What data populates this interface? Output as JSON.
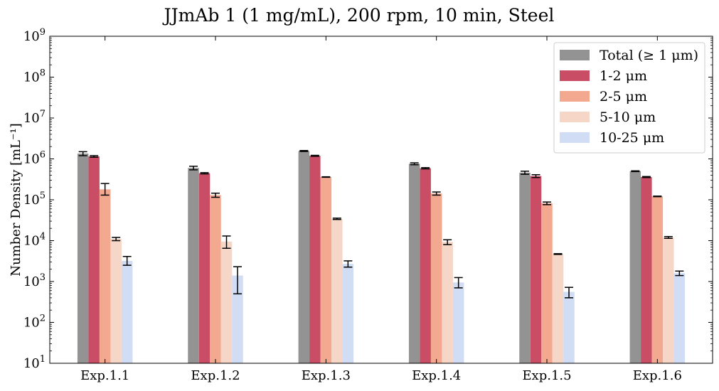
{
  "chart_data": {
    "type": "bar",
    "title": "JJmAb 1 (1 mg/mL), 200 rpm, 10 min, Steel",
    "xlabel": "",
    "ylabel": "Number Density [mL⁻¹]",
    "yscale": "log",
    "ylim": [
      10,
      1000000000
    ],
    "yticks": [
      {
        "value": 10,
        "base": "10",
        "exp": "1"
      },
      {
        "value": 100,
        "base": "10",
        "exp": "2"
      },
      {
        "value": 1000,
        "base": "10",
        "exp": "3"
      },
      {
        "value": 10000,
        "base": "10",
        "exp": "4"
      },
      {
        "value": 100000,
        "base": "10",
        "exp": "5"
      },
      {
        "value": 1000000,
        "base": "10",
        "exp": "6"
      },
      {
        "value": 10000000,
        "base": "10",
        "exp": "7"
      },
      {
        "value": 100000000,
        "base": "10",
        "exp": "8"
      },
      {
        "value": 1000000000,
        "base": "10",
        "exp": "9"
      }
    ],
    "categories": [
      "Exp.1.1",
      "Exp.1.2",
      "Exp.1.3",
      "Exp.1.4",
      "Exp.1.5",
      "Exp.1.6"
    ],
    "legend_position": "top-right",
    "grid": false,
    "series": [
      {
        "name": "Total (≥ 1 μm)",
        "color": "#939393",
        "values": [
          1350000,
          600000,
          1560000,
          760000,
          460000,
          500000
        ],
        "errors": [
          1500000,
          660000,
          1600000,
          800000,
          500000,
          510000
        ],
        "errors_low": [
          1200000,
          540000,
          1520000,
          720000,
          420000,
          490000
        ]
      },
      {
        "name": "1-2 μm",
        "color": "#c94e65",
        "values": [
          1150000,
          445000,
          1190000,
          590000,
          380000,
          360000
        ],
        "errors": [
          1200000,
          460000,
          1220000,
          610000,
          410000,
          370000
        ],
        "errors_low": [
          1100000,
          430000,
          1160000,
          570000,
          350000,
          350000
        ],
        "label_suffix": ""
      },
      {
        "name": "2-5 μm",
        "color": "#f2a990",
        "values": [
          180000,
          130000,
          360000,
          142000,
          82000,
          121000
        ],
        "errors": [
          250000,
          145000,
          365000,
          155000,
          88000,
          123000
        ],
        "errors_low": [
          130000,
          115000,
          355000,
          130000,
          76000,
          119000
        ]
      },
      {
        "name": "5-10 μm",
        "color": "#f6d6c6",
        "values": [
          11000,
          9500,
          34000,
          9300,
          4700,
          12000
        ],
        "errors": [
          12000,
          13000,
          35500,
          10500,
          4800,
          12600
        ],
        "errors_low": [
          10000,
          6500,
          33000,
          8000,
          4600,
          11400
        ]
      },
      {
        "name": "10-25 μm",
        "color": "#d0ddf4",
        "values": [
          3200,
          1400,
          2700,
          950,
          560,
          1600
        ],
        "errors": [
          4100,
          2300,
          3200,
          1250,
          720,
          1800
        ],
        "errors_low": [
          2500,
          500,
          2250,
          700,
          400,
          1400
        ]
      }
    ]
  }
}
